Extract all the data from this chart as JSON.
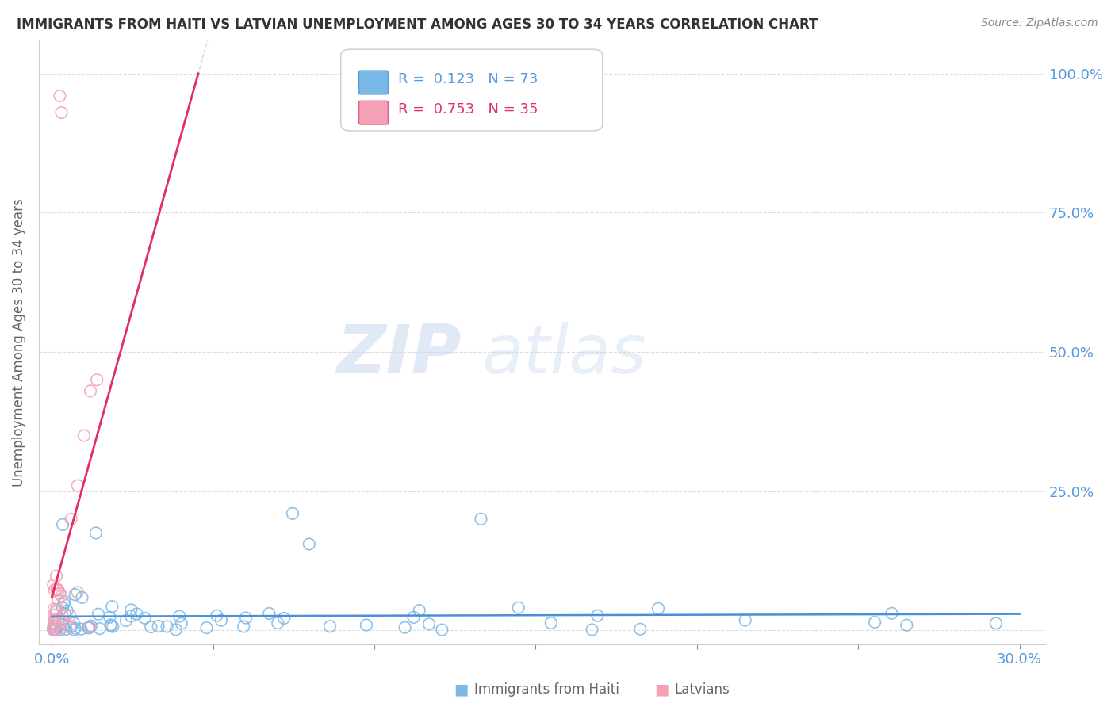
{
  "title": "IMMIGRANTS FROM HAITI VS LATVIAN UNEMPLOYMENT AMONG AGES 30 TO 34 YEARS CORRELATION CHART",
  "source": "Source: ZipAtlas.com",
  "ylabel": "Unemployment Among Ages 30 to 34 years",
  "watermark_zip": "ZIP",
  "watermark_atlas": "atlas",
  "series1_label": "Immigrants from Haiti",
  "series1_color": "#7ab8e8",
  "series1_edge": "#5a9fd4",
  "series1_R": "0.123",
  "series1_N": "73",
  "series2_label": "Latvians",
  "series2_color": "#f4a0b5",
  "series2_edge": "#e06080",
  "series2_R": "0.753",
  "series2_N": "35",
  "trendline_color_haiti": "#4a90d9",
  "trendline_color_latvian": "#e03060",
  "trendline_color_gray": "#bbbbbb",
  "background_color": "#ffffff",
  "grid_color": "#dddddd",
  "tick_color": "#5599dd",
  "label_color": "#666666",
  "title_color": "#333333",
  "source_color": "#888888"
}
